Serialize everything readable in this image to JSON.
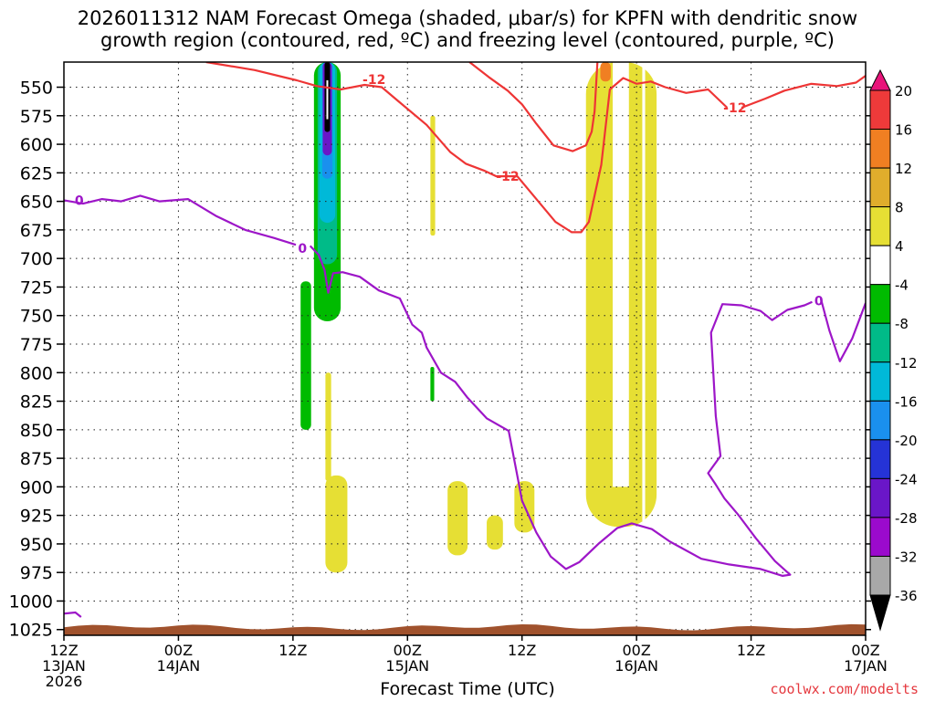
{
  "chart_data": {
    "type": "time-height",
    "title_line1": "2026011312 NAM Forecast Omega (shaded, μbar/s) for KPFN with dendritic snow",
    "title_line2": "growth region (contoured, red, ºC) and freezing level (contoured, purple, ºC)",
    "xlabel": "Forecast Time (UTC)",
    "credit": "coolwx.com/modelts",
    "pressure_levels": [
      550,
      575,
      600,
      625,
      650,
      675,
      700,
      725,
      750,
      775,
      800,
      825,
      850,
      875,
      900,
      925,
      950,
      975,
      1000,
      1025
    ],
    "ylim": [
      528,
      1030
    ],
    "x_ticks": [
      {
        "hour": 0,
        "l1": "12Z",
        "l2": "13JAN",
        "l3": "2026"
      },
      {
        "hour": 12,
        "l1": "00Z",
        "l2": "14JAN",
        "l3": ""
      },
      {
        "hour": 24,
        "l1": "12Z",
        "l2": "",
        "l3": ""
      },
      {
        "hour": 36,
        "l1": "00Z",
        "l2": "15JAN",
        "l3": ""
      },
      {
        "hour": 48,
        "l1": "12Z",
        "l2": "",
        "l3": ""
      },
      {
        "hour": 60,
        "l1": "00Z",
        "l2": "16JAN",
        "l3": ""
      },
      {
        "hour": 72,
        "l1": "12Z",
        "l2": "",
        "l3": ""
      },
      {
        "hour": 84,
        "l1": "00Z",
        "l2": "17JAN",
        "l3": ""
      }
    ],
    "xlim": [
      0,
      84
    ],
    "colorbar": {
      "labels": [
        "20",
        "16",
        "12",
        "8",
        "4",
        "-4",
        "-8",
        "-12",
        "-16",
        "-20",
        "-24",
        "-28",
        "-32",
        "-36"
      ],
      "colors": [
        "#e8147a",
        "#ee3a3a",
        "#f07f22",
        "#e0ad2c",
        "#e6df34",
        "#ffffff",
        "#00bb00",
        "#00bb88",
        "#00b9d8",
        "#1a90ee",
        "#2533d6",
        "#6a16c8",
        "#9b0acd",
        "#a8a8a8",
        "#000000"
      ]
    },
    "contour_labels": [
      {
        "text": "-12",
        "hour": 32.5,
        "p": 543
      },
      {
        "text": "-12",
        "hour": 46.5,
        "p": 628
      },
      {
        "text": "-12",
        "hour": 70.3,
        "p": 568
      },
      {
        "text": "0",
        "hour": 1.6,
        "p": 649
      },
      {
        "text": "0",
        "hour": 25.0,
        "p": 691
      },
      {
        "text": "0",
        "hour": 79.1,
        "p": 737
      }
    ],
    "series": [
      {
        "name": "dendritic -12C",
        "color": "#ee3535",
        "segments": [
          [
            [
              14.9,
              528
            ],
            [
              20,
              535
            ],
            [
              24.4,
              544
            ],
            [
              26.5,
              549
            ],
            [
              29,
              552
            ],
            [
              31.5,
              548
            ],
            [
              33.3,
              550
            ],
            [
              35,
              562
            ],
            [
              38,
              583
            ],
            [
              40.5,
              607
            ],
            [
              42.1,
              617
            ],
            [
              44,
              623
            ],
            [
              45.3,
              628
            ],
            [
              47.5,
              628
            ],
            [
              49.5,
              648
            ],
            [
              51.5,
              668
            ],
            [
              53.2,
              677
            ],
            [
              54.2,
              677
            ],
            [
              55,
              668
            ],
            [
              56.3,
              618
            ],
            [
              57.2,
              552
            ],
            [
              58.6,
              542
            ],
            [
              60,
              547
            ],
            [
              61.5,
              545
            ],
            [
              63,
              550
            ],
            [
              65.2,
              555
            ],
            [
              67.5,
              552
            ],
            [
              69.5,
              568
            ]
          ],
          [
            [
              42.5,
              528
            ],
            [
              44.5,
              541
            ],
            [
              46.5,
              553
            ],
            [
              48,
              565
            ],
            [
              49.5,
              582
            ],
            [
              51.3,
              601
            ],
            [
              53.3,
              606
            ],
            [
              54.7,
              601
            ],
            [
              55.3,
              589
            ],
            [
              55.6,
              571
            ],
            [
              55.9,
              528
            ]
          ],
          [
            [
              71,
              568
            ],
            [
              73.5,
              560
            ],
            [
              75.5,
              553
            ],
            [
              78.3,
              547
            ],
            [
              81,
              549
            ],
            [
              83,
              546
            ],
            [
              84,
              540
            ]
          ]
        ]
      },
      {
        "name": "freezing level 0C",
        "color": "#9d16c8",
        "segments": [
          [
            [
              0,
              649
            ],
            [
              2,
              652
            ],
            [
              4,
              648
            ],
            [
              6,
              650
            ],
            [
              8,
              645
            ],
            [
              10,
              650
            ],
            [
              13,
              648
            ],
            [
              16,
              663
            ],
            [
              19,
              675
            ],
            [
              22,
              682
            ],
            [
              24.3,
              688
            ]
          ],
          [
            [
              25.8,
              689
            ],
            [
              26.7,
              697
            ],
            [
              27.3,
              710
            ],
            [
              27.7,
              730
            ],
            [
              28.2,
              713
            ],
            [
              29.2,
              712
            ],
            [
              31,
              716
            ],
            [
              33,
              728
            ],
            [
              35.2,
              735
            ],
            [
              36.5,
              758
            ],
            [
              37.5,
              765
            ],
            [
              38,
              778
            ],
            [
              39.5,
              800
            ],
            [
              41,
              808
            ],
            [
              42.3,
              822
            ],
            [
              44.3,
              840
            ],
            [
              46.6,
              851
            ],
            [
              47.5,
              890
            ],
            [
              48,
              912
            ],
            [
              49.5,
              940
            ],
            [
              51,
              961
            ],
            [
              52.6,
              972
            ],
            [
              54,
              966
            ],
            [
              56,
              950
            ],
            [
              58,
              936
            ],
            [
              59.5,
              932
            ],
            [
              61.6,
              937
            ],
            [
              63.5,
              948
            ],
            [
              66.8,
              963
            ],
            [
              69.7,
              968
            ],
            [
              73,
              972
            ],
            [
              75.3,
              978
            ],
            [
              76.1,
              977
            ],
            [
              74.5,
              965
            ],
            [
              72.5,
              945
            ],
            [
              70.7,
              925
            ],
            [
              69.2,
              910
            ],
            [
              68.3,
              898
            ],
            [
              67.5,
              888
            ],
            [
              68.8,
              873
            ],
            [
              68.3,
              838
            ],
            [
              67.8,
              765
            ],
            [
              69,
              740
            ],
            [
              71,
              741
            ],
            [
              73,
              746
            ],
            [
              74.2,
              754
            ],
            [
              75.8,
              745
            ],
            [
              77.6,
              741
            ],
            [
              78.4,
              738
            ]
          ],
          [
            [
              79.3,
              735
            ],
            [
              80.2,
              763
            ],
            [
              81.3,
              790
            ],
            [
              82.6,
              770
            ],
            [
              84,
              739
            ]
          ]
        ]
      }
    ],
    "omega_regions": [
      {
        "hour_range": [
          26.2,
          29.0
        ],
        "p_range": [
          528,
          755
        ],
        "core": "-36 (black/purple)",
        "value": -36
      },
      {
        "hour_range": [
          24.8,
          25.9
        ],
        "p_range": [
          720,
          850
        ],
        "value": -8
      },
      {
        "hour_range": [
          38.4,
          38.8
        ],
        "p_range": [
          795,
          825
        ],
        "value": -8
      },
      {
        "hour_range": [
          27.4,
          28.0
        ],
        "p_range": [
          800,
          895
        ],
        "value": 4
      },
      {
        "hour_range": [
          27.4,
          29.7
        ],
        "p_range": [
          890,
          975
        ],
        "value": 4
      },
      {
        "hour_range": [
          38.4,
          38.9
        ],
        "p_range": [
          575,
          680
        ],
        "value": 4
      },
      {
        "hour_range": [
          40.2,
          42.3
        ],
        "p_range": [
          895,
          960
        ],
        "value": 4
      },
      {
        "hour_range": [
          44.3,
          46.0
        ],
        "p_range": [
          925,
          955
        ],
        "value": 4
      },
      {
        "hour_range": [
          47.2,
          49.3
        ],
        "p_range": [
          895,
          940
        ],
        "value": 4
      },
      {
        "hour_range": [
          54.7,
          62.1
        ],
        "p_range": [
          528,
          935
        ],
        "value": 4
      },
      {
        "hour_range": [
          56.2,
          57.3
        ],
        "p_range": [
          528,
          545
        ],
        "value": 12
      }
    ]
  }
}
